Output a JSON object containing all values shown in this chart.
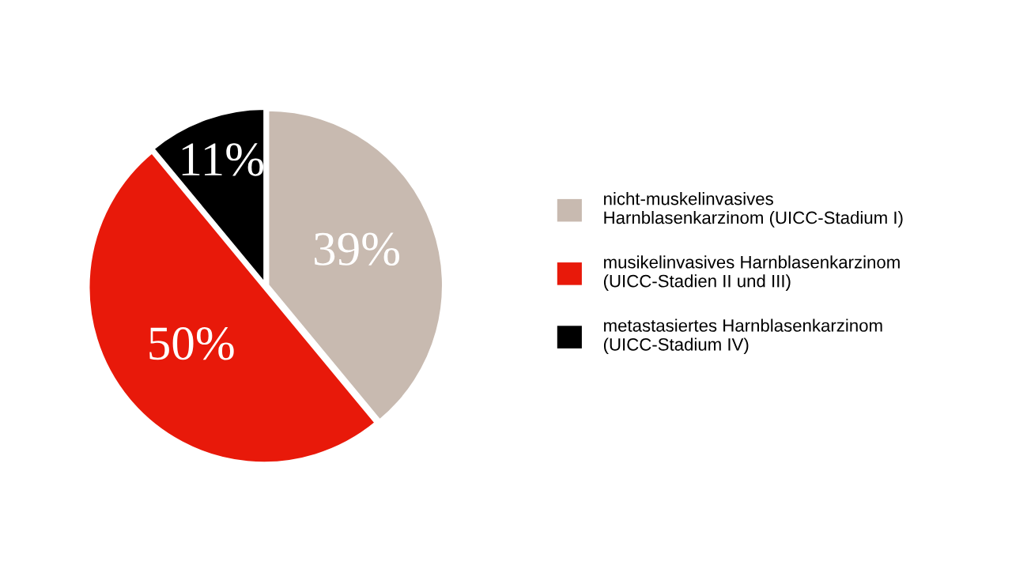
{
  "chart_data": {
    "type": "pie",
    "categories": [
      "nicht-muskelinvasives\nHarnblasenkarzinom (UICC-Stadium I)",
      "musikelinvasives Harnblasenkarzinom\n(UICC-Stadien II und III)",
      "metastasiertes Harnblasenkarzinom\n(UICC-Stadium IV)"
    ],
    "values": [
      39,
      50,
      11
    ],
    "colors": [
      "#c8bab0",
      "#e8190a",
      "#000000"
    ],
    "value_labels": [
      "39%",
      "50%",
      "11%"
    ],
    "legend": "right"
  }
}
